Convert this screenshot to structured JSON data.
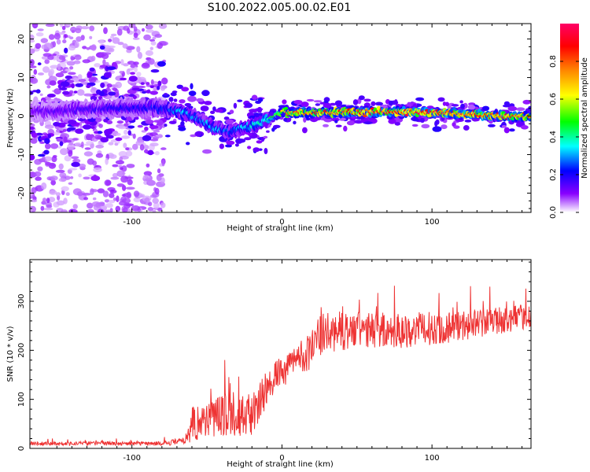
{
  "title": "S100.2022.005.00.02.E01",
  "chart_data": [
    {
      "type": "heatmap",
      "name": "spectrogram",
      "xlabel": "Height of straight line (km)",
      "ylabel": "Frequency (Hz)",
      "xlim": [
        -168,
        166
      ],
      "ylim": [
        -25,
        24
      ],
      "xticks": [
        -100,
        0,
        100
      ],
      "yticks": [
        -20,
        -10,
        0,
        10,
        20
      ],
      "colorbar": {
        "label": "Normalized spectral amplitude",
        "range": [
          0.0,
          1.0
        ],
        "ticks": [
          0.0,
          0.2,
          0.4,
          0.6,
          0.8
        ],
        "tick_labels": [
          "0.0",
          "0.2",
          "0.4",
          "0.6",
          "0.8"
        ],
        "colormap": [
          "#ffffff",
          "#8800ff",
          "#0000ff",
          "#00ffff",
          "#00ff00",
          "#ffff00",
          "#ff8800",
          "#ff0000",
          "#ff0066"
        ]
      },
      "ridge": {
        "height_km": [
          -168,
          -120,
          -80,
          -65,
          -55,
          -45,
          -35,
          -25,
          -15,
          -5,
          0,
          10,
          50,
          100,
          150,
          166
        ],
        "frequency_hz": [
          1,
          2,
          2,
          1,
          -1,
          -3,
          -4,
          -3,
          -2,
          0,
          1,
          1,
          1,
          1,
          0,
          0
        ],
        "peak_amplitude": [
          0.15,
          0.2,
          0.25,
          0.35,
          0.3,
          0.35,
          0.3,
          0.35,
          0.4,
          0.5,
          0.7,
          0.8,
          0.85,
          0.9,
          0.85,
          0.8
        ]
      },
      "noise_region_km": [
        -168,
        -78
      ]
    },
    {
      "type": "line",
      "name": "snr",
      "xlabel": "Height of straight line (km)",
      "ylabel": "SNR (10 * v/v)",
      "xlim": [
        -168,
        166
      ],
      "ylim": [
        0,
        385
      ],
      "xticks": [
        -100,
        0,
        100
      ],
      "yticks": [
        0,
        100,
        200,
        300
      ],
      "color": "#ee3333",
      "envelope": {
        "height_km": [
          -168,
          -80,
          -65,
          -60,
          -40,
          -20,
          -12,
          -5,
          0,
          10,
          20,
          25,
          40,
          80,
          120,
          166
        ],
        "snr_mean": [
          10,
          10,
          15,
          50,
          70,
          65,
          110,
          150,
          150,
          185,
          200,
          230,
          240,
          240,
          250,
          270
        ],
        "snr_spread": [
          5,
          5,
          10,
          45,
          55,
          50,
          50,
          45,
          35,
          40,
          50,
          55,
          50,
          45,
          40,
          30
        ]
      }
    }
  ]
}
